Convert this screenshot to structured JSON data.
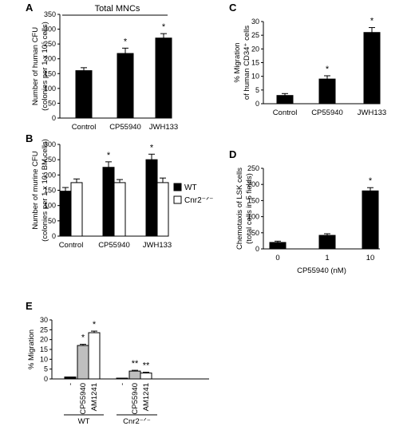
{
  "chart_data": [
    {
      "panel": "A",
      "type": "bar",
      "title": "Total MNCs",
      "ylabel": [
        "Number of human CFU",
        "(colonies per 1 x 10⁵ cells)"
      ],
      "ylim": [
        0,
        350
      ],
      "yticks": [
        0,
        50,
        100,
        150,
        200,
        250,
        300,
        350
      ],
      "categories": [
        "Control",
        "CP55940",
        "JWH133"
      ],
      "values": [
        160,
        218,
        270
      ],
      "errors": [
        10,
        18,
        15
      ],
      "annotations": [
        "",
        "*",
        "*"
      ],
      "colors": [
        "#000000"
      ]
    },
    {
      "panel": "B",
      "type": "bar",
      "ylabel": [
        "Number of murine CFU",
        "(colonies per 1 x 10⁴ BM cells)"
      ],
      "ylim": [
        0,
        300
      ],
      "yticks": [
        0,
        50,
        100,
        150,
        200,
        250,
        300
      ],
      "categories": [
        "Control",
        "CP55940",
        "JWH133"
      ],
      "series": [
        {
          "name": "WT",
          "values": [
            147,
            225,
            250
          ],
          "errors": [
            12,
            18,
            18
          ],
          "annotations": [
            "",
            "*",
            "*"
          ],
          "color": "#000000"
        },
        {
          "name": "Cnr2⁻ᐟ⁻",
          "values": [
            175,
            175,
            175
          ],
          "errors": [
            12,
            10,
            15
          ],
          "annotations": [
            "",
            "",
            ""
          ],
          "color": "#ffffff"
        }
      ]
    },
    {
      "panel": "C",
      "type": "bar",
      "ylabel": [
        "% Migration",
        "of human CD34⁺ cells"
      ],
      "ylim": [
        0,
        30
      ],
      "yticks": [
        0,
        5,
        10,
        15,
        20,
        25,
        30
      ],
      "categories": [
        "Control",
        "CP55940",
        "JWH133"
      ],
      "values": [
        3,
        9,
        26
      ],
      "errors": [
        0.7,
        1.2,
        1.8
      ],
      "annotations": [
        "",
        "*",
        "*"
      ],
      "colors": [
        "#000000"
      ]
    },
    {
      "panel": "D",
      "type": "bar",
      "ylabel": [
        "Chemotaxis of LSK cells",
        "(total cells in 5 fields)"
      ],
      "xlabel": "CP55940 (nM)",
      "ylim": [
        0,
        250
      ],
      "yticks": [
        0,
        50,
        100,
        150,
        200,
        250
      ],
      "categories": [
        "0",
        "1",
        "10"
      ],
      "values": [
        20,
        42,
        180
      ],
      "errors": [
        4,
        5,
        10
      ],
      "annotations": [
        "",
        "",
        "*"
      ],
      "colors": [
        "#000000"
      ]
    },
    {
      "panel": "E",
      "type": "bar",
      "ylabel": [
        "% Migration"
      ],
      "ylim": [
        0,
        30
      ],
      "yticks": [
        0,
        5,
        10,
        15,
        20,
        25,
        30
      ],
      "groups": [
        "WT",
        "Cnr2⁻ᐟ⁻"
      ],
      "categories": [
        "-",
        "CP55940",
        "AM1241",
        "-",
        "CP55940",
        "AM1241"
      ],
      "values": [
        1,
        17,
        23.5,
        0.4,
        4,
        3
      ],
      "errors": [
        0,
        0.6,
        0.8,
        0,
        0.4,
        0.4
      ],
      "annotations": [
        "",
        "*",
        "*",
        "",
        "**",
        "**"
      ],
      "colors": [
        "#000000",
        "#bfbfbf",
        "#ffffff",
        "#000000",
        "#bfbfbf",
        "#ffffff"
      ]
    }
  ]
}
